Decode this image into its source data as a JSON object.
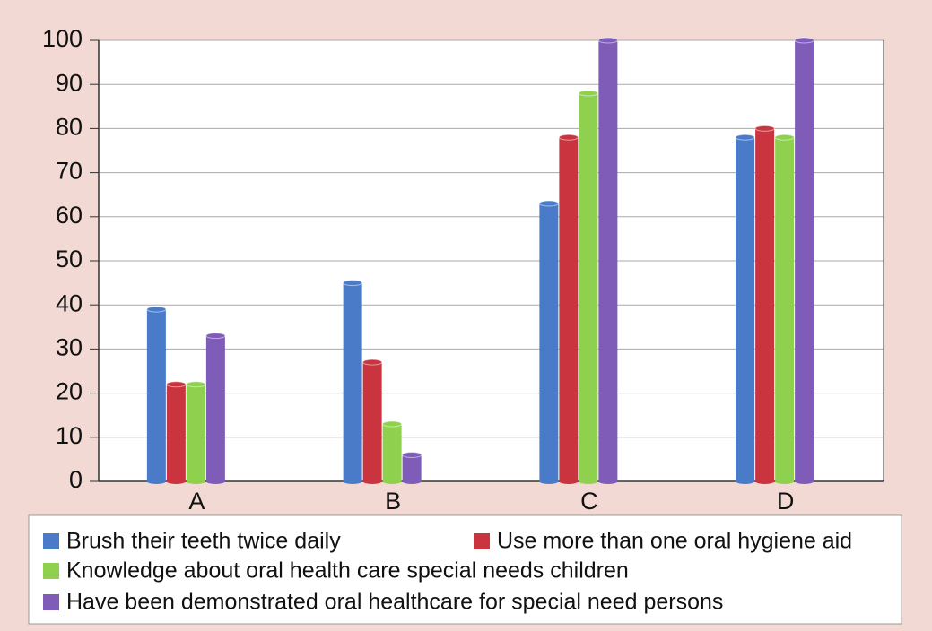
{
  "chart_data": {
    "type": "bar",
    "categories": [
      "A",
      "B",
      "C",
      "D"
    ],
    "series": [
      {
        "name": "Brush their teeth twice daily",
        "color": "#4a7bc8",
        "values": [
          39,
          45,
          63,
          78
        ]
      },
      {
        "name": "Use more than one oral hygiene aid",
        "color": "#c9343f",
        "values": [
          22,
          27,
          78,
          80
        ]
      },
      {
        "name": "Knowledge about oral health care special needs children",
        "color": "#8fd14f",
        "values": [
          22,
          13,
          88,
          78
        ]
      },
      {
        "name": "Have been demonstrated oral healthcare for special need persons",
        "color": "#7e5cb8",
        "values": [
          33,
          6,
          100,
          100
        ]
      }
    ],
    "ylim": [
      0,
      100
    ],
    "yticks": [
      0,
      10,
      20,
      30,
      40,
      50,
      60,
      70,
      80,
      90,
      100
    ],
    "grid": true,
    "legend": "bottom"
  }
}
